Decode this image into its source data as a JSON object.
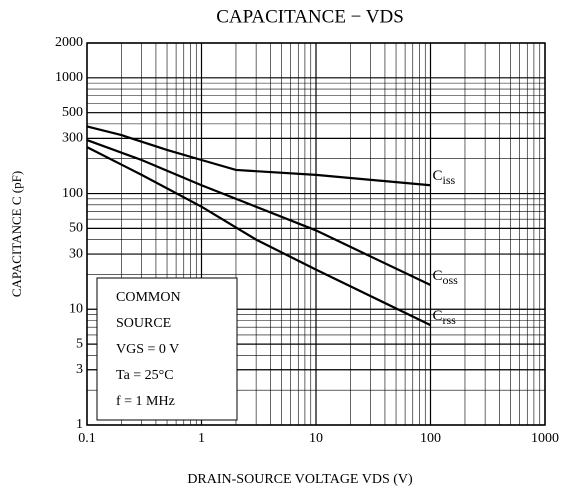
{
  "chart_data": {
    "type": "line",
    "title": "CAPACITANCE − VDS",
    "x_label": "DRAIN-SOURCE VOLTAGE  VDS  (V)",
    "y_label": "CAPACITANCE  C  (pF)",
    "xlog": true,
    "ylog": true,
    "grid": true,
    "xlim": [
      0.1,
      1000
    ],
    "ylim": [
      1,
      2000
    ],
    "xticks": [
      0.1,
      1,
      10,
      100,
      1000
    ],
    "yticks": [
      1,
      3,
      5,
      10,
      30,
      50,
      100,
      300,
      500,
      1000,
      2000
    ],
    "annotation": [
      "COMMON",
      "SOURCE",
      "VGS = 0 V",
      "Ta = 25°C",
      "f = 1 MHz"
    ],
    "series": [
      {
        "name": "Ciss",
        "color": "#000000",
        "x": [
          0.1,
          0.2,
          0.5,
          1,
          2,
          10,
          100
        ],
        "values": [
          380,
          320,
          238,
          195,
          160,
          145,
          118
        ]
      },
      {
        "name": "Coss",
        "color": "#000000",
        "x": [
          0.1,
          0.3,
          1,
          10,
          100
        ],
        "values": [
          290,
          195,
          118,
          48,
          16.2
        ]
      },
      {
        "name": "Crss",
        "color": "#000000",
        "x": [
          0.1,
          0.3,
          1,
          3,
          10,
          100
        ],
        "values": [
          252,
          145,
          77,
          40,
          22,
          7.3
        ]
      }
    ]
  }
}
